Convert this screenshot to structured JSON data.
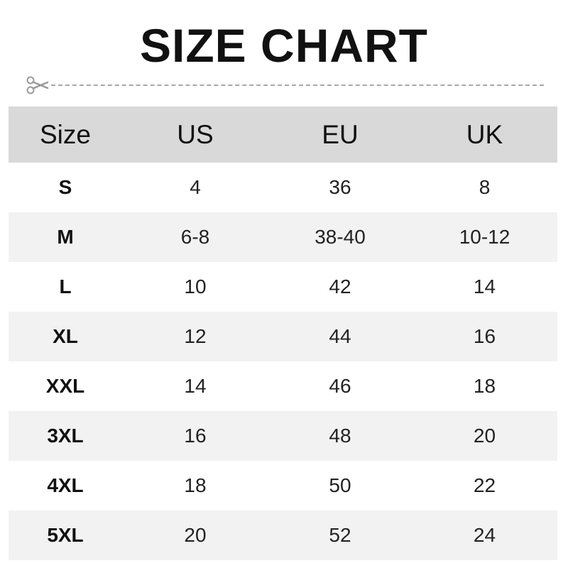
{
  "title": "SIZE CHART",
  "icons": {
    "cut": "scissors-icon"
  },
  "table": {
    "headers": [
      "Size",
      "US",
      "EU",
      "UK"
    ],
    "rows": [
      [
        "S",
        "4",
        "36",
        "8"
      ],
      [
        "M",
        "6-8",
        "38-40",
        "10-12"
      ],
      [
        "L",
        "10",
        "42",
        "14"
      ],
      [
        "XL",
        "12",
        "44",
        "16"
      ],
      [
        "XXL",
        "14",
        "46",
        "18"
      ],
      [
        "3XL",
        "16",
        "48",
        "20"
      ],
      [
        "4XL",
        "18",
        "50",
        "22"
      ],
      [
        "5XL",
        "20",
        "52",
        "24"
      ]
    ]
  },
  "colors": {
    "header_bg": "#d9d9d9",
    "alt_row_bg": "#f2f2f2",
    "dash": "#a8a8a8"
  }
}
